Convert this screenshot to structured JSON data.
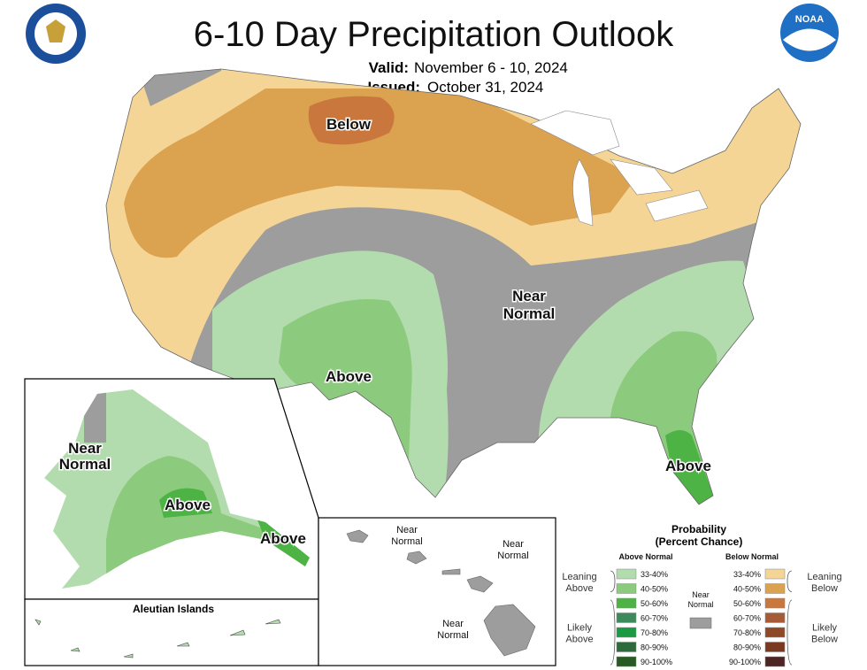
{
  "title": "6-10 Day Precipitation Outlook",
  "noaa_logo": "NOAA",
  "valid": {
    "label": "Valid:",
    "value": "November 6 - 10, 2024"
  },
  "issued": {
    "label": "Issued:",
    "value": "October 31, 2024"
  },
  "conus_labels": {
    "below": "Below",
    "near_normal": [
      "Near",
      "Normal"
    ],
    "above_west": "Above",
    "above_southeast": "Above"
  },
  "alaska_labels": {
    "near_normal": [
      "Near",
      "Normal"
    ],
    "above_interior": "Above",
    "above_panhandle": "Above"
  },
  "aleutian_title": "Aleutian Islands",
  "hawaii_labels": [
    [
      "Near",
      "Normal"
    ],
    [
      "Near",
      "Normal"
    ],
    [
      "Near",
      "Normal"
    ]
  ],
  "legend": {
    "title": "Probability",
    "subtitle": "(Percent Chance)",
    "above_header": "Above Normal",
    "below_header": "Below Normal",
    "near_normal": {
      "lines": [
        "Near",
        "Normal"
      ],
      "color": "#9d9d9d"
    },
    "above_groups": [
      [
        "Leaning",
        "Above"
      ],
      [
        "Likely",
        "Above"
      ]
    ],
    "below_groups": [
      [
        "Leaning",
        "Below"
      ],
      [
        "Likely",
        "Below"
      ]
    ],
    "above": [
      {
        "label": "33-40%",
        "color": "#b3dcae"
      },
      {
        "label": "40-50%",
        "color": "#8ccb7e"
      },
      {
        "label": "50-60%",
        "color": "#4cb344"
      },
      {
        "label": "60-70%",
        "color": "#3d8b5c"
      },
      {
        "label": "70-80%",
        "color": "#1c9a43"
      },
      {
        "label": "80-90%",
        "color": "#2e6b3c"
      },
      {
        "label": "90-100%",
        "color": "#285a23"
      }
    ],
    "below": [
      {
        "label": "33-40%",
        "color": "#f5d596"
      },
      {
        "label": "40-50%",
        "color": "#dba24f"
      },
      {
        "label": "50-60%",
        "color": "#c9773d"
      },
      {
        "label": "60-70%",
        "color": "#a65a36"
      },
      {
        "label": "70-80%",
        "color": "#8e4a27"
      },
      {
        "label": "80-90%",
        "color": "#7a3a1f"
      },
      {
        "label": "90-100%",
        "color": "#4e2522"
      }
    ]
  }
}
